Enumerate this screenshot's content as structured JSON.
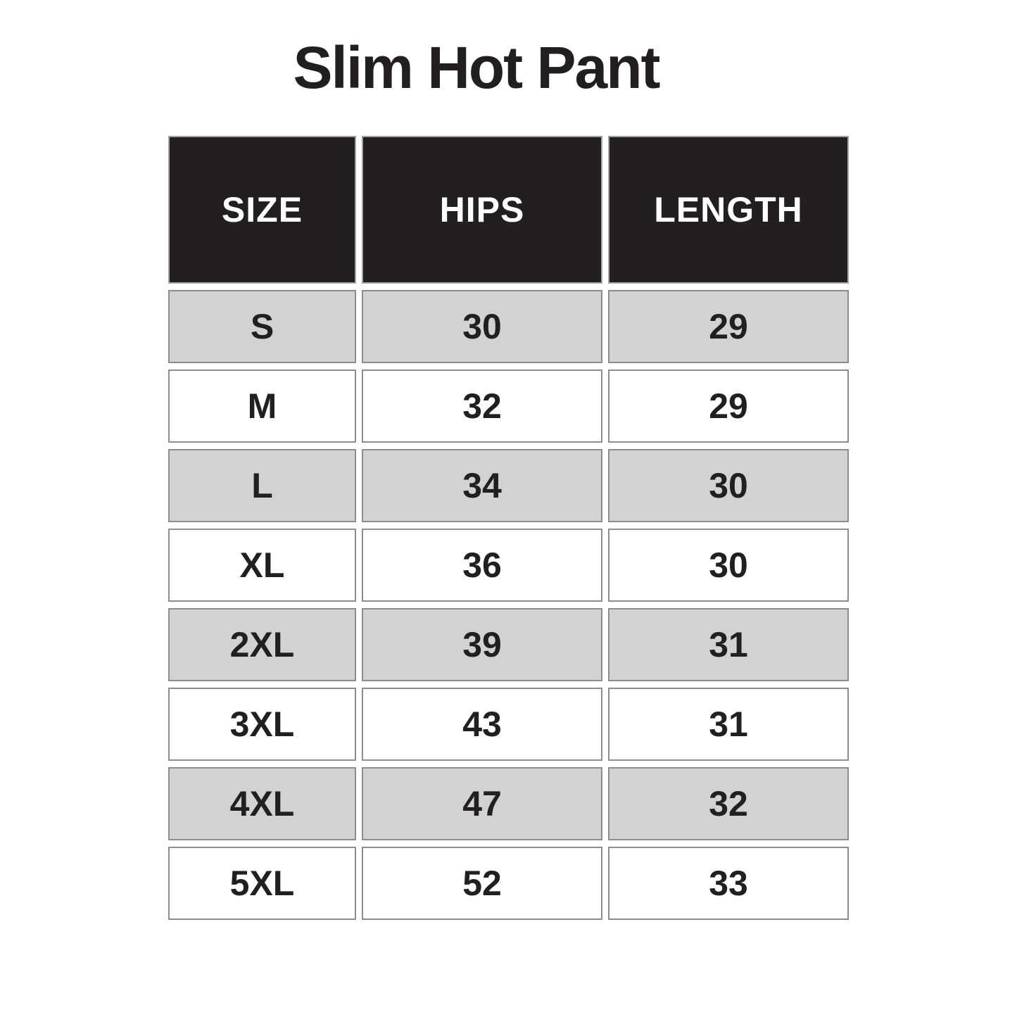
{
  "page": {
    "title": "Slim Hot Pant"
  },
  "table": {
    "headers": [
      "SIZE",
      "HIPS",
      "LENGTH"
    ]
  },
  "colors": {
    "header_bg": "#231f20",
    "header_text": "#ffffff",
    "row_shaded_bg": "#d2d2d4",
    "row_plain_bg": "#ffffff",
    "cell_border": "#8d8d8d",
    "header_border": "#a2a2a2",
    "text": "#231f20",
    "page_bg": "#ffffff"
  },
  "chart_data": {
    "type": "table",
    "title": "Slim Hot Pant",
    "columns": [
      "SIZE",
      "HIPS",
      "LENGTH"
    ],
    "rows": [
      [
        "S",
        30,
        29
      ],
      [
        "M",
        32,
        29
      ],
      [
        "L",
        34,
        30
      ],
      [
        "XL",
        36,
        30
      ],
      [
        "2XL",
        39,
        31
      ],
      [
        "3XL",
        43,
        31
      ],
      [
        "4XL",
        47,
        32
      ],
      [
        "5XL",
        52,
        33
      ]
    ],
    "layout": {
      "shading": "alternating rows, odd rows shaded gray starting with first data row",
      "header_style": "black background, white uppercase text",
      "grid": "separated cells with thin gray borders and white gaps"
    }
  }
}
